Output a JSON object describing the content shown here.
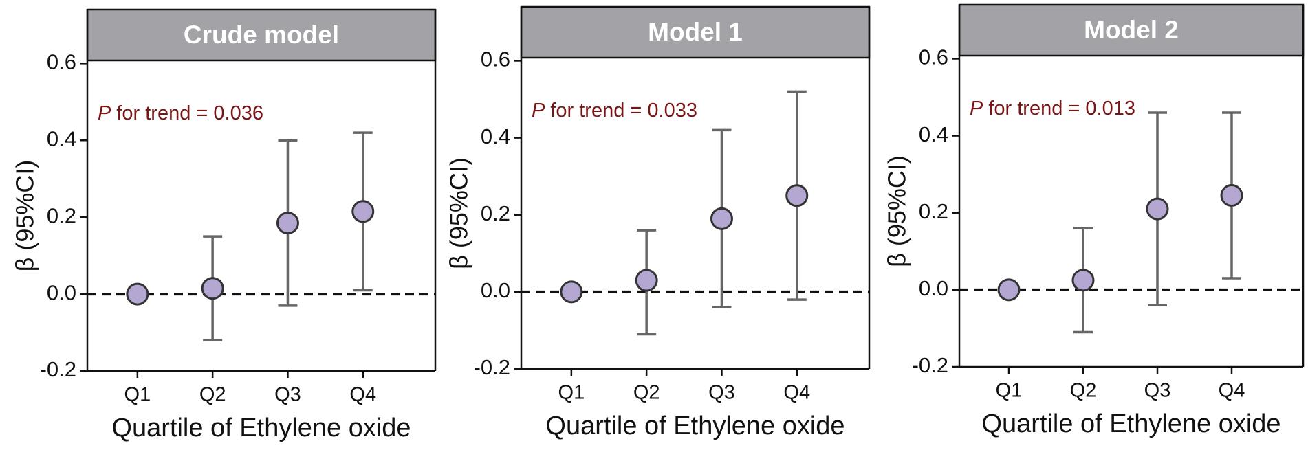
{
  "chart_data": [
    {
      "type": "errorbar",
      "title": "Crude model",
      "annotation": {
        "italic": "P",
        "text": "for trend = 0.036"
      },
      "xlabel": "Quartile of Ethylene oxide",
      "ylabel": "β (95%CI)",
      "categories": [
        "Q1",
        "Q2",
        "Q3",
        "Q4"
      ],
      "values": [
        0,
        0.015,
        0.185,
        0.215
      ],
      "lower": [
        null,
        -0.12,
        -0.03,
        0.01
      ],
      "upper": [
        null,
        0.15,
        0.4,
        0.42
      ],
      "color": "#b4a8d2",
      "ylim": [
        -0.2,
        0.74
      ],
      "yticks": [
        -0.2,
        {
          "value": 0,
          "label": "0.0"
        },
        0.2,
        0.4,
        0.6
      ]
    },
    {
      "type": "errorbar",
      "title": "Model 1",
      "annotation": {
        "italic": "P",
        "text": "for trend = 0.033"
      },
      "xlabel": "Quartile of Ethylene oxide",
      "ylabel": "β (95%CI)",
      "categories": [
        "Q1",
        "Q2",
        "Q3",
        "Q4"
      ],
      "values": [
        0,
        0.03,
        0.19,
        0.25
      ],
      "lower": [
        null,
        -0.11,
        -0.04,
        -0.02
      ],
      "upper": [
        null,
        0.16,
        0.42,
        0.52
      ],
      "color": "#b4a8d2",
      "ylim": [
        -0.2,
        0.74
      ],
      "yticks": [
        -0.2,
        {
          "value": 0,
          "label": "0.0"
        },
        0.2,
        0.4,
        0.6
      ]
    },
    {
      "type": "errorbar",
      "title": "Model 2",
      "annotation": {
        "italic": "P",
        "text": "for trend = 0.013"
      },
      "xlabel": "Quartile of Ethylene oxide",
      "ylabel": "β (95%CI)",
      "categories": [
        "Q1",
        "Q2",
        "Q3",
        "Q4"
      ],
      "values": [
        0,
        0.025,
        0.21,
        0.245
      ],
      "lower": [
        null,
        -0.11,
        -0.04,
        0.03
      ],
      "upper": [
        null,
        0.16,
        0.46,
        0.46
      ],
      "color": "#b4a8d2",
      "ylim": [
        -0.2,
        0.74
      ],
      "yticks": [
        -0.2,
        {
          "value": 0,
          "label": "0.0"
        },
        0.2,
        0.4,
        0.6
      ]
    }
  ]
}
